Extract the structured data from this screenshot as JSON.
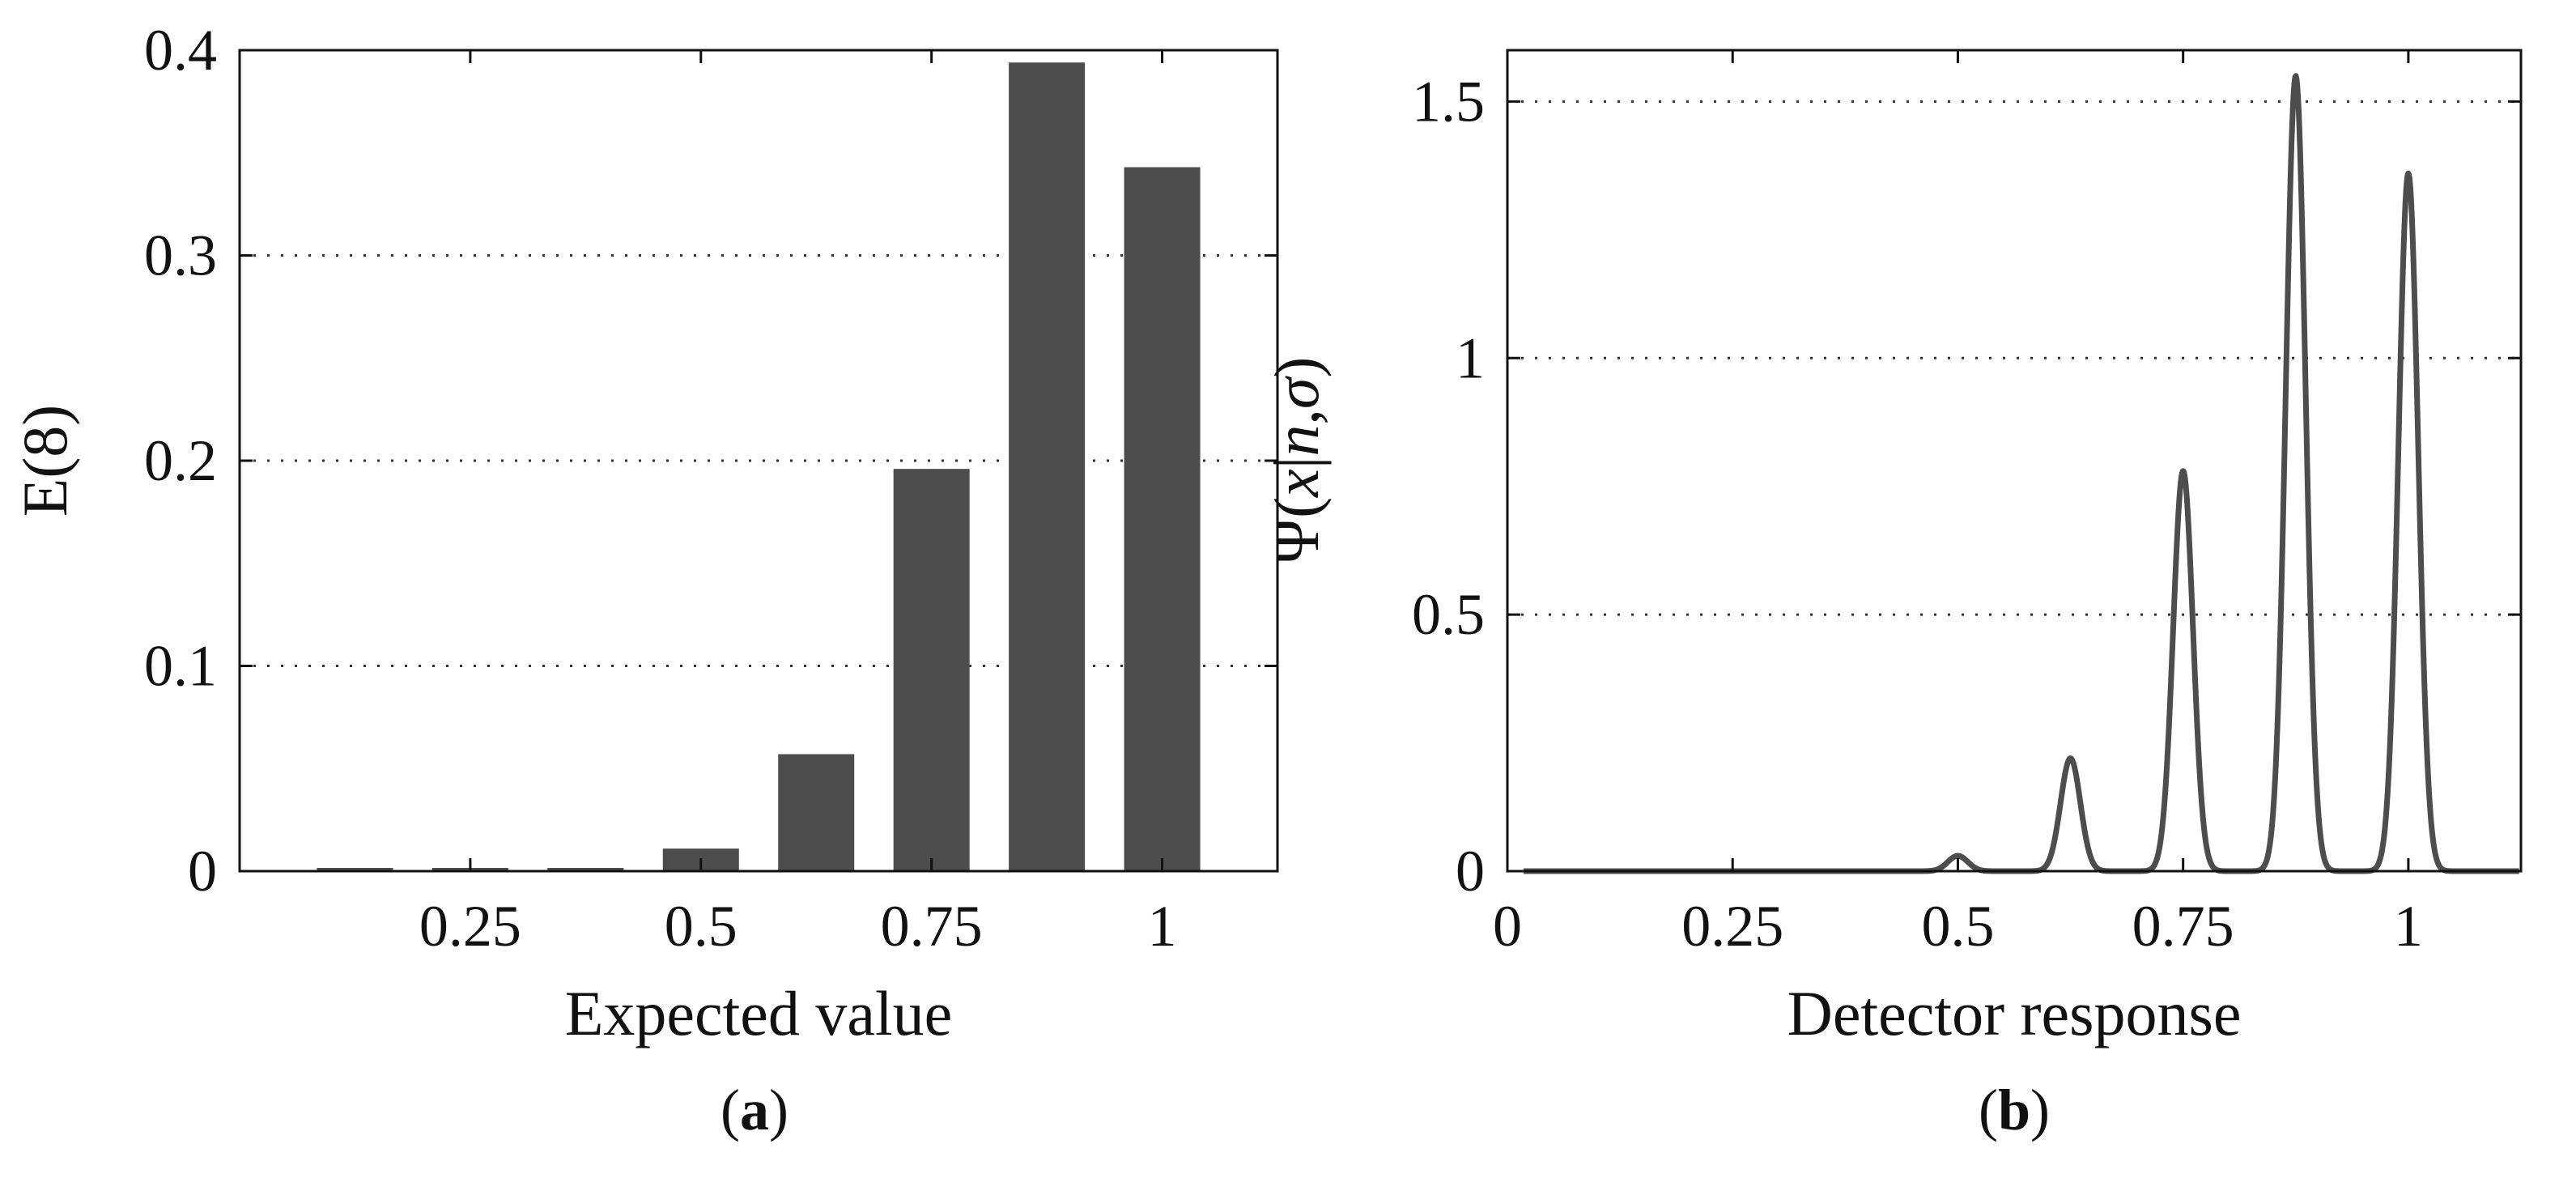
{
  "colors": {
    "mark": "#4d4d4d",
    "axis": "#111111",
    "grid": "#333333",
    "background": "#ffffff"
  },
  "chart_data": [
    {
      "type": "bar",
      "panel_label": "a",
      "caption_open": "(",
      "caption_close": ")",
      "xlabel": "Expected value",
      "ylabel": "E(8)",
      "x": [
        0.125,
        0.25,
        0.375,
        0.5,
        0.625,
        0.75,
        0.875,
        1.0
      ],
      "values": [
        0.001,
        0.001,
        0.001,
        0.011,
        0.057,
        0.196,
        0.394,
        0.343
      ],
      "xlim": [
        0.0,
        1.125
      ],
      "ylim": [
        0,
        0.4
      ],
      "xticks": [
        0.25,
        0.5,
        0.75,
        1.0
      ],
      "xtick_labels": [
        "0.25",
        "0.5",
        "0.75",
        "1"
      ],
      "yticks": [
        0,
        0.1,
        0.2,
        0.3,
        0.4
      ],
      "ytick_labels": [
        "0",
        "0.1",
        "0.2",
        "0.3",
        "0.4"
      ],
      "grid": "horizontal dotted"
    },
    {
      "type": "line",
      "panel_label": "b",
      "caption_open": "(",
      "caption_close": ")",
      "xlabel": "Detector response",
      "ylabel_parts": [
        "Ψ(",
        "x",
        "|",
        "n",
        ",",
        "σ",
        ")"
      ],
      "series": [
        {
          "name": "Ψ",
          "peaks": [
            {
              "center": 0.5,
              "height": 0.03
            },
            {
              "center": 0.625,
              "height": 0.22
            },
            {
              "center": 0.75,
              "height": 0.78
            },
            {
              "center": 0.875,
              "height": 1.55
            },
            {
              "center": 1.0,
              "height": 1.36
            }
          ],
          "peak_width": 0.011
        }
      ],
      "xlim": [
        0,
        1.125
      ],
      "ylim": [
        0,
        1.6
      ],
      "xticks": [
        0,
        0.25,
        0.5,
        0.75,
        1.0
      ],
      "xtick_labels": [
        "0",
        "0.25",
        "0.5",
        "0.75",
        "1"
      ],
      "yticks": [
        0,
        0.5,
        1.0,
        1.5
      ],
      "ytick_labels": [
        "0",
        "0.5",
        "1",
        "1.5"
      ],
      "grid": "horizontal dotted"
    }
  ]
}
